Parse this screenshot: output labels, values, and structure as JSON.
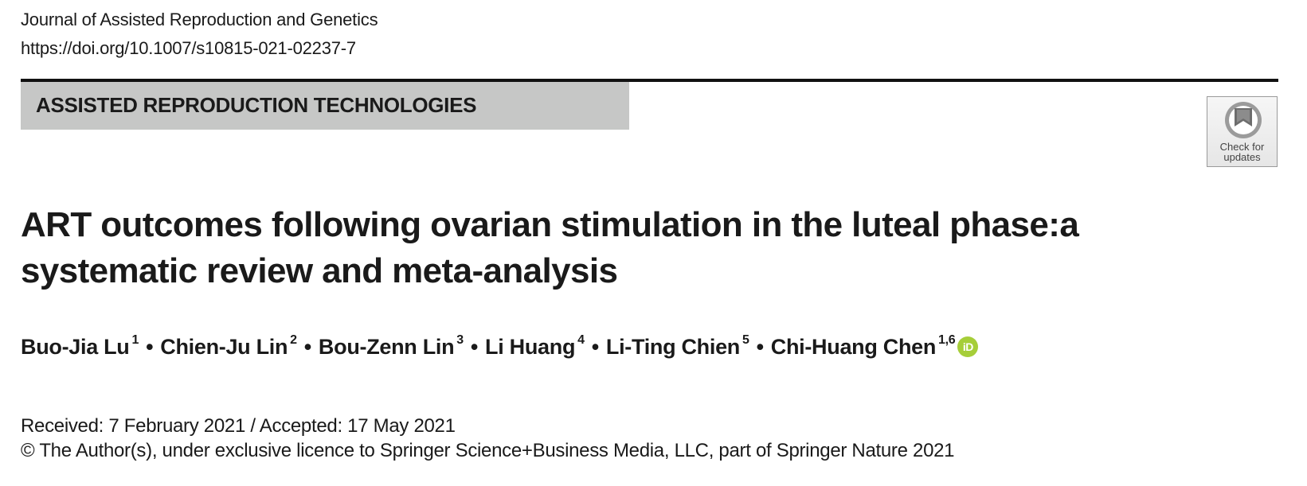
{
  "header": {
    "journal": "Journal of Assisted Reproduction and Genetics",
    "doi": "https://doi.org/10.1007/s10815-021-02237-7"
  },
  "section": {
    "label": "ASSISTED REPRODUCTION TECHNOLOGIES"
  },
  "badge": {
    "line1": "Check for",
    "line2": "updates",
    "icon": "crossmark-icon"
  },
  "title": {
    "line1": "ART outcomes following ovarian stimulation in the luteal phase:a",
    "line2": "systematic review and meta-analysis"
  },
  "authors": [
    {
      "name": "Buo-Jia Lu",
      "aff": "1"
    },
    {
      "name": "Chien-Ju Lin",
      "aff": "2"
    },
    {
      "name": "Bou-Zenn Lin",
      "aff": "3"
    },
    {
      "name": "Li Huang",
      "aff": "4"
    },
    {
      "name": "Li-Ting Chien",
      "aff": "5"
    },
    {
      "name": "Chi-Huang Chen",
      "aff": "1,6"
    }
  ],
  "author_separator": "•",
  "orcid": {
    "label": "iD",
    "color": "#a6ce39"
  },
  "dates": "Received: 7 February 2021 / Accepted: 17 May 2021",
  "copyright": "© The Author(s), under exclusive licence to Springer Science+Business Media, LLC, part of Springer Nature 2021"
}
